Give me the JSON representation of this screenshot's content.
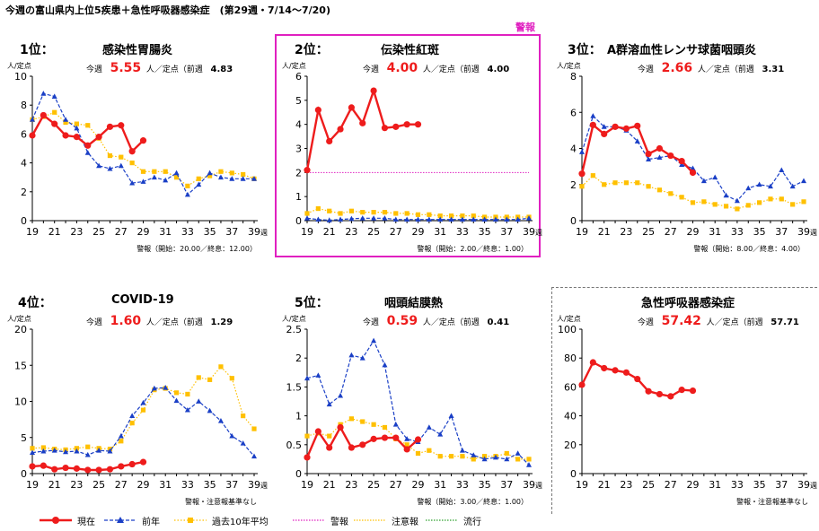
{
  "page_title": "今週の富山県内上位5疾患＋急性呼吸器感染症　(第29週・7/14～7/20)",
  "alert_tag": "警報",
  "labels": {
    "unit": "人/定点",
    "this_week": "今週",
    "unit_prev": "人／定点（前週",
    "week_suffix": "週"
  },
  "colors": {
    "current": "#ee1c1c",
    "last_year": "#1a3fc6",
    "ten_year_avg": "#ffc000",
    "alert": "#e020c0",
    "advisory": "#ffc000",
    "epidemic": "#2ca02c"
  },
  "legend": [
    {
      "label": "現在",
      "style": "current"
    },
    {
      "label": "前年",
      "style": "last_year"
    },
    {
      "label": "過去10年平均",
      "style": "ten_year_avg"
    },
    {
      "label": "警報",
      "style": "alert"
    },
    {
      "label": "注意報",
      "style": "advisory"
    },
    {
      "label": "流行",
      "style": "epidemic"
    }
  ],
  "panels": [
    {
      "rank": "1位：",
      "name": "感染性胃腸炎",
      "current": "5.55",
      "previous": "4.83",
      "threshold_note": "警報（開始：20.00／終息：12.00）"
    },
    {
      "rank": "2位：",
      "name": "伝染性紅斑",
      "current": "4.00",
      "previous": "4.00",
      "threshold_note": "警報（開始：2.00／終息：1.00）"
    },
    {
      "rank": "3位：",
      "name": "A群溶血性レンサ球菌咽頭炎",
      "current": "2.66",
      "previous": "3.31",
      "threshold_note": "警報（開始：8.00／終息：4.00）"
    },
    {
      "rank": "4位：",
      "name": "COVID-19",
      "current": "1.60",
      "previous": "1.29",
      "threshold_note": "警報・注意報基準なし"
    },
    {
      "rank": "5位：",
      "name": "咽頭結膜熱",
      "current": "0.59",
      "previous": "0.41",
      "threshold_note": "警報（開始：3.00／終息：1.00）"
    },
    {
      "rank": "",
      "name": "急性呼吸器感染症",
      "current": "57.42",
      "previous": "57.71",
      "threshold_note": "警報・注意報基準なし"
    }
  ],
  "chart_data": [
    {
      "type": "line",
      "title": "感染性胃腸炎",
      "ylim": [
        0,
        10
      ],
      "yticks": [
        0,
        2,
        4,
        6,
        8,
        10
      ],
      "xlim": [
        19,
        39
      ],
      "xticks": [
        19,
        21,
        23,
        25,
        27,
        29,
        31,
        33,
        35,
        37,
        39
      ],
      "series": [
        {
          "name": "現在",
          "x": [
            19,
            20,
            21,
            22,
            23,
            24,
            25,
            26,
            27,
            28,
            29
          ],
          "values": [
            5.9,
            7.3,
            6.7,
            5.9,
            5.8,
            5.2,
            5.8,
            6.5,
            6.6,
            4.8,
            5.55
          ]
        },
        {
          "name": "前年",
          "x": [
            19,
            20,
            21,
            22,
            23,
            24,
            25,
            26,
            27,
            28,
            29,
            30,
            31,
            32,
            33,
            34,
            35,
            36,
            37,
            38,
            39
          ],
          "values": [
            7.0,
            8.8,
            8.6,
            7.0,
            6.4,
            4.7,
            3.8,
            3.6,
            3.8,
            2.6,
            2.7,
            3.0,
            2.8,
            3.3,
            1.8,
            2.5,
            3.3,
            3.0,
            2.9,
            2.9,
            2.9
          ]
        },
        {
          "name": "過去10年平均",
          "x": [
            19,
            20,
            21,
            22,
            23,
            24,
            25,
            26,
            27,
            28,
            29,
            30,
            31,
            32,
            33,
            34,
            35,
            36,
            37,
            38,
            39
          ],
          "values": [
            7.0,
            7.2,
            7.5,
            6.8,
            6.7,
            6.6,
            5.7,
            4.5,
            4.4,
            4.0,
            3.4,
            3.4,
            3.4,
            3.0,
            2.4,
            2.9,
            3.1,
            3.4,
            3.3,
            3.2,
            2.9
          ]
        }
      ]
    },
    {
      "type": "line",
      "title": "伝染性紅斑",
      "ylim": [
        0,
        6
      ],
      "yticks": [
        0,
        1,
        2,
        3,
        4,
        5,
        6
      ],
      "xlim": [
        19,
        39
      ],
      "xticks": [
        19,
        21,
        23,
        25,
        27,
        29,
        31,
        33,
        35,
        37,
        39
      ],
      "alert_level": 2.0,
      "series": [
        {
          "name": "現在",
          "x": [
            19,
            20,
            21,
            22,
            23,
            24,
            25,
            26,
            27,
            28,
            29
          ],
          "values": [
            2.1,
            4.6,
            3.3,
            3.8,
            4.7,
            4.05,
            5.4,
            3.85,
            3.9,
            4.0,
            4.0
          ]
        },
        {
          "name": "前年",
          "x": [
            19,
            20,
            21,
            22,
            23,
            24,
            25,
            26,
            27,
            28,
            29,
            30,
            31,
            32,
            33,
            34,
            35,
            36,
            37,
            38,
            39
          ],
          "values": [
            0.1,
            0.05,
            0.02,
            0.05,
            0.08,
            0.1,
            0.1,
            0.1,
            0.05,
            0.05,
            0.05,
            0.05,
            0.05,
            0.05,
            0.05,
            0.05,
            0.05,
            0.05,
            0.05,
            0.05,
            0.1
          ]
        },
        {
          "name": "過去10年平均",
          "x": [
            19,
            20,
            21,
            22,
            23,
            24,
            25,
            26,
            27,
            28,
            29,
            30,
            31,
            32,
            33,
            34,
            35,
            36,
            37,
            38,
            39
          ],
          "values": [
            0.3,
            0.5,
            0.4,
            0.3,
            0.4,
            0.35,
            0.35,
            0.35,
            0.3,
            0.3,
            0.25,
            0.25,
            0.2,
            0.2,
            0.2,
            0.2,
            0.15,
            0.15,
            0.15,
            0.15,
            0.15
          ]
        }
      ]
    },
    {
      "type": "line",
      "title": "A群溶血性レンサ球菌咽頭炎",
      "ylim": [
        0,
        8
      ],
      "yticks": [
        0,
        2,
        4,
        6,
        8
      ],
      "xlim": [
        19,
        39
      ],
      "xticks": [
        19,
        21,
        23,
        25,
        27,
        29,
        31,
        33,
        35,
        37,
        39
      ],
      "series": [
        {
          "name": "現在",
          "x": [
            19,
            20,
            21,
            22,
            23,
            24,
            25,
            26,
            27,
            28,
            29
          ],
          "values": [
            2.6,
            5.3,
            4.8,
            5.2,
            5.1,
            5.25,
            3.7,
            4.0,
            3.6,
            3.3,
            2.66
          ]
        },
        {
          "name": "前年",
          "x": [
            19,
            20,
            21,
            22,
            23,
            24,
            25,
            26,
            27,
            28,
            29,
            30,
            31,
            32,
            33,
            34,
            35,
            36,
            37,
            38,
            39
          ],
          "values": [
            3.8,
            5.8,
            5.2,
            5.2,
            5.0,
            4.4,
            3.4,
            3.5,
            3.6,
            3.1,
            2.9,
            2.2,
            2.4,
            1.4,
            1.1,
            1.8,
            2.0,
            1.9,
            2.8,
            1.9,
            2.2
          ]
        },
        {
          "name": "過去10年平均",
          "x": [
            19,
            20,
            21,
            22,
            23,
            24,
            25,
            26,
            27,
            28,
            29,
            30,
            31,
            32,
            33,
            34,
            35,
            36,
            37,
            38,
            39
          ],
          "values": [
            1.9,
            2.5,
            2.0,
            2.1,
            2.1,
            2.1,
            1.9,
            1.7,
            1.5,
            1.3,
            1.0,
            1.05,
            0.9,
            0.8,
            0.65,
            0.85,
            1.0,
            1.2,
            1.2,
            0.9,
            1.05
          ]
        }
      ]
    },
    {
      "type": "line",
      "title": "COVID-19",
      "ylim": [
        0,
        20
      ],
      "yticks": [
        0,
        5,
        10,
        15,
        20
      ],
      "xlim": [
        19,
        39
      ],
      "xticks": [
        19,
        21,
        23,
        25,
        27,
        29,
        31,
        33,
        35,
        37,
        39
      ],
      "series": [
        {
          "name": "現在",
          "x": [
            19,
            20,
            21,
            22,
            23,
            24,
            25,
            26,
            27,
            28,
            29
          ],
          "values": [
            1.0,
            1.1,
            0.6,
            0.8,
            0.7,
            0.5,
            0.5,
            0.6,
            1.0,
            1.3,
            1.6
          ]
        },
        {
          "name": "前年",
          "x": [
            19,
            20,
            21,
            22,
            23,
            24,
            25,
            26,
            27,
            28,
            29,
            30,
            31,
            32,
            33,
            34,
            35,
            36,
            37,
            38,
            39
          ],
          "values": [
            2.9,
            3.1,
            3.2,
            3.0,
            3.1,
            2.6,
            3.2,
            3.1,
            5.2,
            8.0,
            9.8,
            11.8,
            11.9,
            10.1,
            8.8,
            10.0,
            8.7,
            7.3,
            5.2,
            4.2,
            2.4
          ]
        },
        {
          "name": "過去10年平均",
          "x": [
            19,
            20,
            21,
            22,
            23,
            24,
            25,
            26,
            27,
            28,
            29,
            30,
            31,
            32,
            33,
            34,
            35,
            36,
            37,
            38,
            39
          ],
          "values": [
            3.5,
            3.6,
            3.4,
            3.3,
            3.5,
            3.7,
            3.5,
            3.4,
            4.5,
            7.0,
            8.8,
            11.6,
            11.8,
            11.2,
            11.0,
            13.3,
            13.0,
            14.8,
            13.2,
            8.0,
            6.2
          ]
        }
      ]
    },
    {
      "type": "line",
      "title": "咽頭結膜熱",
      "ylim": [
        0,
        2.5
      ],
      "yticks": [
        0,
        0.5,
        1,
        1.5,
        2,
        2.5
      ],
      "xlim": [
        19,
        39
      ],
      "xticks": [
        19,
        21,
        23,
        25,
        27,
        29,
        31,
        33,
        35,
        37,
        39
      ],
      "series": [
        {
          "name": "現在",
          "x": [
            19,
            20,
            21,
            22,
            23,
            24,
            25,
            26,
            27,
            28,
            29
          ],
          "values": [
            0.28,
            0.73,
            0.45,
            0.8,
            0.45,
            0.5,
            0.6,
            0.62,
            0.62,
            0.42,
            0.59
          ]
        },
        {
          "name": "前年",
          "x": [
            19,
            20,
            21,
            22,
            23,
            24,
            25,
            26,
            27,
            28,
            29,
            30,
            31,
            32,
            33,
            34,
            35,
            36,
            37,
            38,
            39
          ],
          "values": [
            1.65,
            1.7,
            1.2,
            1.35,
            2.05,
            2.0,
            2.3,
            1.88,
            0.85,
            0.6,
            0.55,
            0.8,
            0.68,
            1.0,
            0.4,
            0.32,
            0.25,
            0.28,
            0.25,
            0.35,
            0.15
          ]
        },
        {
          "name": "過去10年平均",
          "x": [
            19,
            20,
            21,
            22,
            23,
            24,
            25,
            26,
            27,
            28,
            29,
            30,
            31,
            32,
            33,
            34,
            35,
            36,
            37,
            38,
            39
          ],
          "values": [
            0.65,
            0.7,
            0.65,
            0.85,
            0.95,
            0.9,
            0.85,
            0.8,
            0.6,
            0.5,
            0.35,
            0.4,
            0.3,
            0.3,
            0.3,
            0.25,
            0.3,
            0.3,
            0.35,
            0.25,
            0.25
          ]
        }
      ]
    },
    {
      "type": "line",
      "title": "急性呼吸器感染症",
      "ylim": [
        0,
        100
      ],
      "yticks": [
        0,
        20,
        40,
        60,
        80,
        100
      ],
      "xlim": [
        19,
        39
      ],
      "xticks": [
        19,
        21,
        23,
        25,
        27,
        29,
        31,
        33,
        35,
        37,
        39
      ],
      "series": [
        {
          "name": "現在",
          "x": [
            19,
            20,
            21,
            22,
            23,
            24,
            25,
            26,
            27,
            28,
            29
          ],
          "values": [
            61.5,
            77.0,
            73.0,
            71.5,
            70.0,
            65.5,
            57.0,
            55.0,
            53.5,
            58.0,
            57.42
          ]
        }
      ]
    }
  ]
}
